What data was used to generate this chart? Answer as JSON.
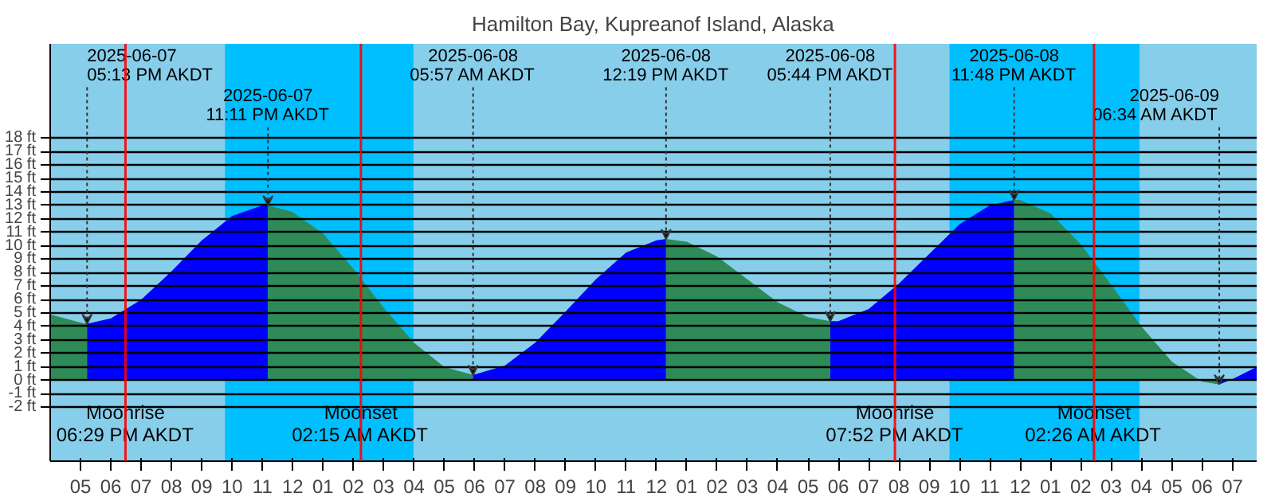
{
  "chart_data": {
    "type": "area",
    "title": "Hamilton Bay, Kupreanof Island, Alaska",
    "xlim": [
      "2025-06-07T16:00",
      "2025-06-09T07:48"
    ],
    "ylim": [
      -6,
      25
    ],
    "xticks": [
      {
        "value": "2025-06-07T17:00",
        "label": "05"
      },
      {
        "value": "2025-06-07T18:00",
        "label": "06"
      },
      {
        "value": "2025-06-07T19:00",
        "label": "07"
      },
      {
        "value": "2025-06-07T20:00",
        "label": "08"
      },
      {
        "value": "2025-06-07T21:00",
        "label": "09"
      },
      {
        "value": "2025-06-07T22:00",
        "label": "10"
      },
      {
        "value": "2025-06-07T23:00",
        "label": "11"
      },
      {
        "value": "2025-06-08T00:00",
        "label": "12"
      },
      {
        "value": "2025-06-08T01:00",
        "label": "01"
      },
      {
        "value": "2025-06-08T02:00",
        "label": "02"
      },
      {
        "value": "2025-06-08T03:00",
        "label": "03"
      },
      {
        "value": "2025-06-08T04:00",
        "label": "04"
      },
      {
        "value": "2025-06-08T05:00",
        "label": "05"
      },
      {
        "value": "2025-06-08T06:00",
        "label": "06"
      },
      {
        "value": "2025-06-08T07:00",
        "label": "07"
      },
      {
        "value": "2025-06-08T08:00",
        "label": "08"
      },
      {
        "value": "2025-06-08T09:00",
        "label": "09"
      },
      {
        "value": "2025-06-08T10:00",
        "label": "10"
      },
      {
        "value": "2025-06-08T11:00",
        "label": "11"
      },
      {
        "value": "2025-06-08T12:00",
        "label": "12"
      },
      {
        "value": "2025-06-08T13:00",
        "label": "01"
      },
      {
        "value": "2025-06-08T14:00",
        "label": "02"
      },
      {
        "value": "2025-06-08T15:00",
        "label": "03"
      },
      {
        "value": "2025-06-08T16:00",
        "label": "04"
      },
      {
        "value": "2025-06-08T17:00",
        "label": "05"
      },
      {
        "value": "2025-06-08T18:00",
        "label": "06"
      },
      {
        "value": "2025-06-08T19:00",
        "label": "07"
      },
      {
        "value": "2025-06-08T20:00",
        "label": "08"
      },
      {
        "value": "2025-06-08T21:00",
        "label": "09"
      },
      {
        "value": "2025-06-08T22:00",
        "label": "10"
      },
      {
        "value": "2025-06-08T23:00",
        "label": "11"
      },
      {
        "value": "2025-06-09T00:00",
        "label": "12"
      },
      {
        "value": "2025-06-09T01:00",
        "label": "01"
      },
      {
        "value": "2025-06-09T02:00",
        "label": "02"
      },
      {
        "value": "2025-06-09T03:00",
        "label": "03"
      },
      {
        "value": "2025-06-09T04:00",
        "label": "04"
      },
      {
        "value": "2025-06-09T05:00",
        "label": "05"
      },
      {
        "value": "2025-06-09T06:00",
        "label": "06"
      },
      {
        "value": "2025-06-09T07:00",
        "label": "07"
      }
    ],
    "yticks": [
      {
        "value": -2,
        "label": "-2 ft"
      },
      {
        "value": -1,
        "label": "-1 ft"
      },
      {
        "value": 0,
        "label": "0 ft"
      },
      {
        "value": 1,
        "label": "1 ft"
      },
      {
        "value": 2,
        "label": "2 ft"
      },
      {
        "value": 3,
        "label": "3 ft"
      },
      {
        "value": 4,
        "label": "4 ft"
      },
      {
        "value": 5,
        "label": "5 ft"
      },
      {
        "value": 6,
        "label": "6 ft"
      },
      {
        "value": 7,
        "label": "7 ft"
      },
      {
        "value": 8,
        "label": "8 ft"
      },
      {
        "value": 9,
        "label": "9 ft"
      },
      {
        "value": 10,
        "label": "10 ft"
      },
      {
        "value": 11,
        "label": "11 ft"
      },
      {
        "value": 12,
        "label": "12 ft"
      },
      {
        "value": 13,
        "label": "13 ft"
      },
      {
        "value": 14,
        "label": "14 ft"
      },
      {
        "value": 15,
        "label": "15 ft"
      },
      {
        "value": 16,
        "label": "16 ft"
      },
      {
        "value": 17,
        "label": "17 ft"
      },
      {
        "value": 18,
        "label": "18 ft"
      }
    ],
    "grid": "y",
    "series": [
      {
        "color": "#2e8b57",
        "x": [
          "2025-06-07T16:00",
          "2025-06-07T17:00",
          "2025-06-07T17:13"
        ],
        "values": [
          4.9,
          4.3,
          4.2
        ]
      },
      {
        "color": "#0000ff",
        "x": [
          "2025-06-07T17:13",
          "2025-06-07T18:00",
          "2025-06-07T19:00",
          "2025-06-07T20:00",
          "2025-06-07T21:00",
          "2025-06-07T22:00",
          "2025-06-07T23:00",
          "2025-06-07T23:11"
        ],
        "values": [
          4.2,
          4.6,
          6.0,
          8.1,
          10.4,
          12.2,
          13.0,
          13.0
        ]
      },
      {
        "color": "#2e8b57",
        "x": [
          "2025-06-07T23:11",
          "2025-06-08T00:00",
          "2025-06-08T01:00",
          "2025-06-08T02:00",
          "2025-06-08T03:00",
          "2025-06-08T04:00",
          "2025-06-08T05:00",
          "2025-06-08T05:57"
        ],
        "values": [
          13.0,
          12.5,
          10.9,
          8.3,
          5.4,
          2.8,
          1.0,
          0.4
        ]
      },
      {
        "color": "#0000ff",
        "x": [
          "2025-06-08T05:57",
          "2025-06-08T07:00",
          "2025-06-08T08:00",
          "2025-06-08T09:00",
          "2025-06-08T10:00",
          "2025-06-08T11:00",
          "2025-06-08T12:00",
          "2025-06-08T12:19"
        ],
        "values": [
          0.4,
          1.1,
          2.8,
          5.1,
          7.5,
          9.5,
          10.4,
          10.5
        ]
      },
      {
        "color": "#2e8b57",
        "x": [
          "2025-06-08T12:19",
          "2025-06-08T13:00",
          "2025-06-08T14:00",
          "2025-06-08T15:00",
          "2025-06-08T16:00",
          "2025-06-08T17:00",
          "2025-06-08T17:44"
        ],
        "values": [
          10.5,
          10.3,
          9.2,
          7.5,
          5.8,
          4.7,
          4.4
        ]
      },
      {
        "color": "#0000ff",
        "x": [
          "2025-06-08T17:44",
          "2025-06-08T18:00",
          "2025-06-08T19:00",
          "2025-06-08T20:00",
          "2025-06-08T21:00",
          "2025-06-08T22:00",
          "2025-06-08T23:00",
          "2025-06-08T23:48"
        ],
        "values": [
          4.4,
          4.4,
          5.3,
          7.2,
          9.4,
          11.6,
          13.0,
          13.4
        ]
      },
      {
        "color": "#2e8b57",
        "x": [
          "2025-06-08T23:48",
          "2025-06-09T00:00",
          "2025-06-09T01:00",
          "2025-06-09T02:00",
          "2025-06-09T03:00",
          "2025-06-09T04:00",
          "2025-06-09T05:00",
          "2025-06-09T06:00",
          "2025-06-09T06:34"
        ],
        "values": [
          13.4,
          13.4,
          12.4,
          10.1,
          7.1,
          4.0,
          1.4,
          -0.1,
          -0.3
        ]
      },
      {
        "color": "#0000ff",
        "x": [
          "2025-06-09T06:34",
          "2025-06-09T07:00",
          "2025-06-09T07:48"
        ],
        "values": [
          -0.3,
          0.1,
          1.0
        ]
      }
    ],
    "bands": [
      {
        "axis": "x",
        "from": "2025-06-07T21:46",
        "to": "2025-06-08T03:59",
        "color": "#00bfff"
      },
      {
        "axis": "x",
        "from": "2025-06-08T21:40",
        "to": "2025-06-09T03:56",
        "color": "#00bfff"
      }
    ],
    "ref_lines": [
      {
        "axis": "x",
        "value": "2025-06-07T18:29",
        "label": "Moonrise\n06:29 PM AKDT",
        "color": "#ff0000"
      },
      {
        "axis": "x",
        "value": "2025-06-08T02:15",
        "label": "Moonset\n02:15 AM AKDT",
        "color": "#ff0000"
      },
      {
        "axis": "x",
        "value": "2025-06-08T19:52",
        "label": "Moonrise\n07:52 PM AKDT",
        "color": "#ff0000"
      },
      {
        "axis": "x",
        "value": "2025-06-09T02:26",
        "label": "Moonset\n02:26 AM AKDT",
        "color": "#ff0000"
      }
    ],
    "annotations": [
      {
        "text": "2025-06-07\n05:13 PM AKDT",
        "x": "2025-06-07T17:13",
        "y": 4.2
      },
      {
        "text": "2025-06-07\n11:11 PM AKDT",
        "x": "2025-06-07T23:11",
        "y": 13.0
      },
      {
        "text": "2025-06-08\n05:57 AM AKDT",
        "x": "2025-06-08T05:57",
        "y": 0.4
      },
      {
        "text": "2025-06-08\n12:19 PM AKDT",
        "x": "2025-06-08T12:19",
        "y": 10.5
      },
      {
        "text": "2025-06-08\n05:44 PM AKDT",
        "x": "2025-06-08T17:44",
        "y": 4.4
      },
      {
        "text": "2025-06-08\n11:48 PM AKDT",
        "x": "2025-06-08T23:48",
        "y": 13.4
      },
      {
        "text": "2025-06-09\n06:34 AM AKDT",
        "x": "2025-06-09T06:34",
        "y": -0.3
      }
    ]
  }
}
